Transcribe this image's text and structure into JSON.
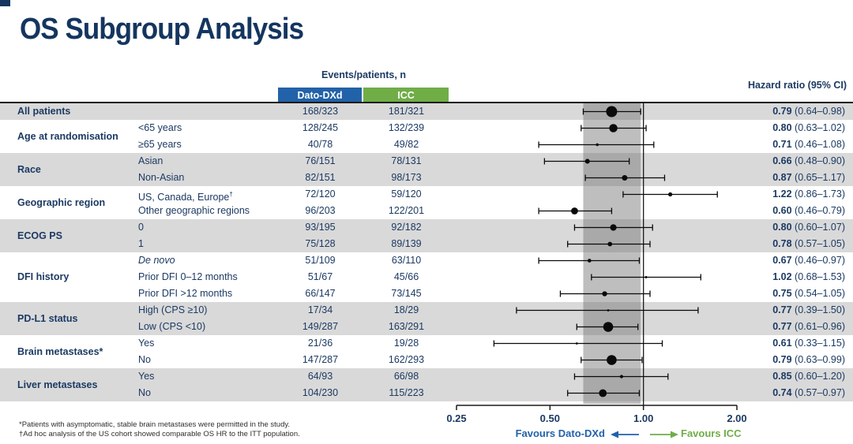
{
  "slide": {
    "title": "OS Subgroup Analysis"
  },
  "table": {
    "events_header": "Events/patients, n",
    "arm1_label": "Dato-DXd",
    "arm2_label": "ICC",
    "hr_header": "Hazard ratio (95% CI)"
  },
  "chart_data": {
    "type": "scatter",
    "subtype": "forest-plot",
    "x_scale": "log",
    "x_ticks": [
      0.25,
      0.5,
      1.0,
      2.0
    ],
    "x_tick_labels": [
      "0.25",
      "0.50",
      "1.00",
      "2.00"
    ],
    "xlim": [
      0.25,
      2.0
    ],
    "reference_line": 1.0,
    "shaded_band": [
      0.64,
      0.98
    ],
    "groups": [
      {
        "name": "All patients",
        "rows": [
          {
            "label": "",
            "dato": "168/323",
            "icc": "181/321",
            "hr": 0.79,
            "lo": 0.64,
            "hi": 0.98,
            "n": 644
          }
        ]
      },
      {
        "name": "Age at randomisation",
        "rows": [
          {
            "label": "<65 years",
            "dato": "128/245",
            "icc": "132/239",
            "hr": 0.8,
            "lo": 0.63,
            "hi": 1.02,
            "n": 484
          },
          {
            "label": "≥65 years",
            "dato": "40/78",
            "icc": "49/82",
            "hr": 0.71,
            "lo": 0.46,
            "hi": 1.08,
            "n": 160
          }
        ]
      },
      {
        "name": "Race",
        "rows": [
          {
            "label": "Asian",
            "dato": "76/151",
            "icc": "78/131",
            "hr": 0.66,
            "lo": 0.48,
            "hi": 0.9,
            "n": 282
          },
          {
            "label": "Non-Asian",
            "dato": "82/151",
            "icc": "98/173",
            "hr": 0.87,
            "lo": 0.65,
            "hi": 1.17,
            "n": 324
          }
        ]
      },
      {
        "name": "Geographic region",
        "rows": [
          {
            "label": "US, Canada, Europe†",
            "dato": "72/120",
            "icc": "59/120",
            "hr": 1.22,
            "lo": 0.86,
            "hi": 1.73,
            "n": 240
          },
          {
            "label": "Other geographic regions",
            "dato": "96/203",
            "icc": "122/201",
            "hr": 0.6,
            "lo": 0.46,
            "hi": 0.79,
            "n": 404
          }
        ]
      },
      {
        "name": "ECOG PS",
        "rows": [
          {
            "label": "0",
            "dato": "93/195",
            "icc": "92/182",
            "hr": 0.8,
            "lo": 0.6,
            "hi": 1.07,
            "n": 377
          },
          {
            "label": "1",
            "dato": "75/128",
            "icc": "89/139",
            "hr": 0.78,
            "lo": 0.57,
            "hi": 1.05,
            "n": 267
          }
        ]
      },
      {
        "name": "DFI history",
        "rows": [
          {
            "label": "De novo",
            "italic": true,
            "dato": "51/109",
            "icc": "63/110",
            "hr": 0.67,
            "lo": 0.46,
            "hi": 0.97,
            "n": 219
          },
          {
            "label": "Prior DFI 0–12 months",
            "dato": "51/67",
            "icc": "45/66",
            "hr": 1.02,
            "lo": 0.68,
            "hi": 1.53,
            "n": 133
          },
          {
            "label": "Prior DFI >12 months",
            "dato": "66/147",
            "icc": "73/145",
            "hr": 0.75,
            "lo": 0.54,
            "hi": 1.05,
            "n": 292
          }
        ]
      },
      {
        "name": "PD-L1 status",
        "rows": [
          {
            "label": "High (CPS ≥10)",
            "dato": "17/34",
            "icc": "18/29",
            "hr": 0.77,
            "lo": 0.39,
            "hi": 1.5,
            "n": 63
          },
          {
            "label": "Low (CPS <10)",
            "dato": "149/287",
            "icc": "163/291",
            "hr": 0.77,
            "lo": 0.61,
            "hi": 0.96,
            "n": 578
          }
        ]
      },
      {
        "name": "Brain metastases*",
        "rows": [
          {
            "label": "Yes",
            "dato": "21/36",
            "icc": "19/28",
            "hr": 0.61,
            "lo": 0.33,
            "hi": 1.15,
            "n": 64
          },
          {
            "label": "No",
            "dato": "147/287",
            "icc": "162/293",
            "hr": 0.79,
            "lo": 0.63,
            "hi": 0.99,
            "n": 580
          }
        ]
      },
      {
        "name": "Liver metastases",
        "rows": [
          {
            "label": "Yes",
            "dato": "64/93",
            "icc": "66/98",
            "hr": 0.85,
            "lo": 0.6,
            "hi": 1.2,
            "n": 191
          },
          {
            "label": "No",
            "dato": "104/230",
            "icc": "115/223",
            "hr": 0.74,
            "lo": 0.57,
            "hi": 0.97,
            "n": 453
          }
        ]
      }
    ]
  },
  "favours": {
    "left_label": "Favours Dato-DXd",
    "right_label": "Favours ICC"
  },
  "footnotes": [
    "*Patients with asymptomatic, stable brain metastases were permitted in the study.",
    "†Ad hoc analysis of the US cohort showed comparable OS HR to the ITT population."
  ],
  "colors": {
    "title_navy": "#14355f",
    "text_navy": "#1c3a63",
    "dato_blue": "#2262a8",
    "icc_green": "#70ad47",
    "stripe_gray": "#d9d9d9",
    "band_gray": "rgba(110,110,110,0.45)",
    "marker_black": "#0a0a0a"
  }
}
